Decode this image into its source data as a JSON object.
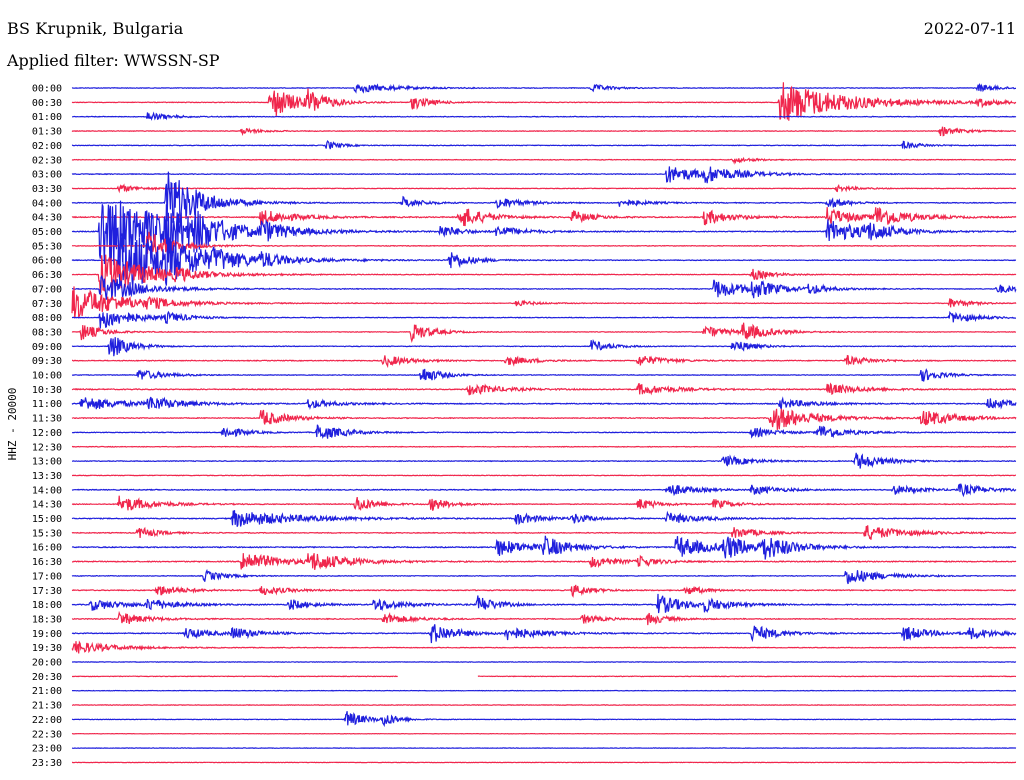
{
  "header": {
    "station": "BS Krupnik, Bulgaria",
    "filter": "Applied filter: WWSSN-SP",
    "date": "2022-07-11"
  },
  "chart_data": {
    "type": "line",
    "title": "BS Krupnik, Bulgaria",
    "subtitle": "Applied filter: WWSSN-SP",
    "ylabel": "HHZ - 20000",
    "xlabel": "",
    "colors": [
      "#1f1fdd",
      "#f0264c"
    ],
    "grid": false,
    "legend": "none",
    "rows": [
      {
        "label": "00:00",
        "color": "#1f1fdd",
        "level": 0.3,
        "events": [
          [
            0.3,
            0.5,
            6
          ],
          [
            0.55,
            0.4,
            3
          ],
          [
            0.96,
            0.4,
            3
          ]
        ]
      },
      {
        "label": "00:30",
        "color": "#f0264c",
        "level": 0.3,
        "events": [
          [
            0.21,
            1.8,
            4
          ],
          [
            0.25,
            1.1,
            3
          ],
          [
            0.36,
            0.7,
            3
          ],
          [
            0.75,
            2.2,
            10
          ],
          [
            0.96,
            0.4,
            3
          ]
        ]
      },
      {
        "label": "01:00",
        "color": "#1f1fdd",
        "level": 0.3,
        "events": [
          [
            0.08,
            0.5,
            3
          ]
        ]
      },
      {
        "label": "01:30",
        "color": "#f0264c",
        "level": 0.3,
        "events": [
          [
            0.18,
            0.3,
            3
          ],
          [
            0.92,
            0.5,
            3
          ]
        ]
      },
      {
        "label": "02:00",
        "color": "#1f1fdd",
        "level": 0.3,
        "events": [
          [
            0.27,
            0.5,
            2
          ],
          [
            0.88,
            0.4,
            3
          ]
        ]
      },
      {
        "label": "02:30",
        "color": "#f0264c",
        "level": 0.3,
        "events": [
          [
            0.7,
            0.3,
            3
          ]
        ]
      },
      {
        "label": "03:00",
        "color": "#1f1fdd",
        "level": 0.35,
        "events": [
          [
            0.63,
            0.9,
            6
          ],
          [
            0.67,
            0.7,
            5
          ]
        ]
      },
      {
        "label": "03:30",
        "color": "#f0264c",
        "level": 0.3,
        "events": [
          [
            0.05,
            0.4,
            3
          ],
          [
            0.81,
            0.3,
            3
          ]
        ]
      },
      {
        "label": "04:00",
        "color": "#1f1fdd",
        "level": 0.35,
        "events": [
          [
            0.1,
            3.5,
            5
          ],
          [
            0.35,
            0.6,
            3
          ],
          [
            0.45,
            0.6,
            4
          ],
          [
            0.58,
            0.4,
            4
          ],
          [
            0.8,
            0.6,
            3
          ]
        ]
      },
      {
        "label": "04:30",
        "color": "#f0264c",
        "level": 0.45,
        "events": [
          [
            0.2,
            0.8,
            5
          ],
          [
            0.41,
            1.2,
            4
          ],
          [
            0.53,
            0.7,
            3
          ],
          [
            0.67,
            0.8,
            4
          ],
          [
            0.8,
            1.0,
            4
          ],
          [
            0.85,
            1.1,
            5
          ]
        ]
      },
      {
        "label": "05:00",
        "color": "#1f1fdd",
        "level": 0.45,
        "events": [
          [
            0.03,
            4.5,
            10
          ],
          [
            0.1,
            1.4,
            4
          ],
          [
            0.13,
            1.1,
            4
          ],
          [
            0.2,
            0.9,
            4
          ],
          [
            0.39,
            0.7,
            3
          ],
          [
            0.45,
            0.6,
            4
          ],
          [
            0.8,
            1.2,
            6
          ],
          [
            0.84,
            0.8,
            4
          ]
        ]
      },
      {
        "label": "05:30",
        "color": "#f0264c",
        "level": 0.3,
        "events": [
          [
            0.08,
            1.5,
            4
          ]
        ]
      },
      {
        "label": "06:00",
        "color": "#1f1fdd",
        "level": 0.35,
        "events": [
          [
            0.05,
            3.5,
            10
          ],
          [
            0.1,
            1.0,
            4
          ],
          [
            0.15,
            0.6,
            3
          ],
          [
            0.2,
            0.6,
            3
          ],
          [
            0.4,
            1.0,
            3
          ]
        ]
      },
      {
        "label": "06:30",
        "color": "#f0264c",
        "level": 0.3,
        "events": [
          [
            0.03,
            2.2,
            8
          ],
          [
            0.11,
            0.4,
            3
          ],
          [
            0.72,
            0.6,
            3
          ]
        ]
      },
      {
        "label": "07:00",
        "color": "#1f1fdd",
        "level": 0.35,
        "events": [
          [
            0.03,
            1.5,
            6
          ],
          [
            0.68,
            1.0,
            5
          ],
          [
            0.72,
            0.8,
            4
          ],
          [
            0.78,
            0.5,
            3
          ],
          [
            0.98,
            0.5,
            3
          ]
        ]
      },
      {
        "label": "07:30",
        "color": "#f0264c",
        "level": 0.3,
        "events": [
          [
            0.0,
            1.8,
            8
          ],
          [
            0.08,
            0.4,
            3
          ],
          [
            0.47,
            0.3,
            3
          ],
          [
            0.93,
            0.5,
            3
          ]
        ]
      },
      {
        "label": "08:00",
        "color": "#1f1fdd",
        "level": 0.3,
        "events": [
          [
            0.03,
            1.2,
            5
          ],
          [
            0.1,
            0.5,
            3
          ],
          [
            0.93,
            0.6,
            4
          ]
        ]
      },
      {
        "label": "08:30",
        "color": "#f0264c",
        "level": 0.3,
        "events": [
          [
            0.01,
            0.9,
            3
          ],
          [
            0.36,
            1.0,
            3
          ],
          [
            0.67,
            0.6,
            4
          ],
          [
            0.71,
            0.9,
            4
          ]
        ]
      },
      {
        "label": "09:00",
        "color": "#1f1fdd",
        "level": 0.3,
        "events": [
          [
            0.04,
            1.3,
            3
          ],
          [
            0.55,
            0.6,
            3
          ],
          [
            0.7,
            0.7,
            3
          ]
        ]
      },
      {
        "label": "09:30",
        "color": "#f0264c",
        "level": 0.35,
        "events": [
          [
            0.33,
            0.6,
            4
          ],
          [
            0.46,
            0.5,
            4
          ],
          [
            0.6,
            0.6,
            4
          ],
          [
            0.82,
            0.5,
            4
          ]
        ]
      },
      {
        "label": "10:00",
        "color": "#1f1fdd",
        "level": 0.3,
        "events": [
          [
            0.07,
            0.6,
            4
          ],
          [
            0.37,
            0.9,
            3
          ],
          [
            0.9,
            0.7,
            3
          ]
        ]
      },
      {
        "label": "10:30",
        "color": "#f0264c",
        "level": 0.45,
        "events": [
          [
            0.42,
            0.6,
            5
          ],
          [
            0.6,
            0.6,
            5
          ],
          [
            0.8,
            0.6,
            5
          ]
        ]
      },
      {
        "label": "11:00",
        "color": "#1f1fdd",
        "level": 0.45,
        "events": [
          [
            0.01,
            0.8,
            6
          ],
          [
            0.08,
            0.7,
            5
          ],
          [
            0.25,
            0.5,
            4
          ],
          [
            0.75,
            0.5,
            5
          ],
          [
            0.97,
            0.6,
            4
          ]
        ]
      },
      {
        "label": "11:30",
        "color": "#f0264c",
        "level": 0.4,
        "events": [
          [
            0.2,
            0.9,
            4
          ],
          [
            0.74,
            1.4,
            6
          ],
          [
            0.9,
            0.9,
            5
          ]
        ]
      },
      {
        "label": "12:00",
        "color": "#1f1fdd",
        "level": 0.35,
        "events": [
          [
            0.16,
            0.7,
            3
          ],
          [
            0.26,
            0.9,
            4
          ],
          [
            0.72,
            0.5,
            4
          ],
          [
            0.79,
            0.8,
            4
          ]
        ]
      },
      {
        "label": "12:30",
        "color": "#f0264c",
        "level": 0.3,
        "events": []
      },
      {
        "label": "13:00",
        "color": "#1f1fdd",
        "level": 0.35,
        "events": [
          [
            0.69,
            0.6,
            4
          ],
          [
            0.83,
            0.9,
            4
          ]
        ]
      },
      {
        "label": "13:30",
        "color": "#f0264c",
        "level": 0.3,
        "events": []
      },
      {
        "label": "14:00",
        "color": "#1f1fdd",
        "level": 0.4,
        "events": [
          [
            0.63,
            0.7,
            4
          ],
          [
            0.72,
            0.5,
            4
          ],
          [
            0.87,
            0.5,
            4
          ],
          [
            0.94,
            0.6,
            4
          ]
        ]
      },
      {
        "label": "14:30",
        "color": "#f0264c",
        "level": 0.35,
        "events": [
          [
            0.05,
            0.9,
            5
          ],
          [
            0.3,
            0.9,
            3
          ],
          [
            0.38,
            0.7,
            3
          ],
          [
            0.6,
            0.6,
            3
          ],
          [
            0.68,
            0.5,
            3
          ]
        ]
      },
      {
        "label": "15:00",
        "color": "#1f1fdd",
        "level": 0.4,
        "events": [
          [
            0.17,
            0.9,
            10
          ],
          [
            0.47,
            0.6,
            4
          ],
          [
            0.53,
            0.5,
            3
          ],
          [
            0.63,
            0.6,
            5
          ]
        ]
      },
      {
        "label": "15:30",
        "color": "#f0264c",
        "level": 0.35,
        "events": [
          [
            0.07,
            0.6,
            3
          ],
          [
            0.7,
            0.6,
            4
          ],
          [
            0.84,
            0.8,
            6
          ]
        ]
      },
      {
        "label": "16:00",
        "color": "#1f1fdd",
        "level": 0.45,
        "events": [
          [
            0.45,
            0.9,
            5
          ],
          [
            0.5,
            1.0,
            4
          ],
          [
            0.64,
            1.2,
            5
          ],
          [
            0.69,
            1.1,
            5
          ],
          [
            0.73,
            1.1,
            5
          ]
        ]
      },
      {
        "label": "16:30",
        "color": "#f0264c",
        "level": 0.45,
        "events": [
          [
            0.18,
            1.2,
            5
          ],
          [
            0.25,
            1.0,
            6
          ],
          [
            0.55,
            0.6,
            4
          ],
          [
            0.6,
            0.5,
            3
          ]
        ]
      },
      {
        "label": "17:00",
        "color": "#1f1fdd",
        "level": 0.3,
        "events": [
          [
            0.14,
            0.6,
            3
          ],
          [
            0.82,
            0.9,
            5
          ]
        ]
      },
      {
        "label": "17:30",
        "color": "#f0264c",
        "level": 0.4,
        "events": [
          [
            0.09,
            0.6,
            4
          ],
          [
            0.2,
            0.5,
            4
          ],
          [
            0.53,
            0.6,
            3
          ],
          [
            0.65,
            0.5,
            3
          ]
        ]
      },
      {
        "label": "18:00",
        "color": "#1f1fdd",
        "level": 0.45,
        "events": [
          [
            0.02,
            0.6,
            5
          ],
          [
            0.08,
            0.6,
            4
          ],
          [
            0.23,
            0.6,
            3
          ],
          [
            0.32,
            0.7,
            4
          ],
          [
            0.43,
            0.9,
            3
          ],
          [
            0.62,
            1.1,
            4
          ],
          [
            0.67,
            0.6,
            4
          ]
        ]
      },
      {
        "label": "18:30",
        "color": "#f0264c",
        "level": 0.4,
        "events": [
          [
            0.05,
            0.7,
            4
          ],
          [
            0.33,
            0.6,
            4
          ],
          [
            0.54,
            0.5,
            3
          ],
          [
            0.61,
            0.6,
            3
          ]
        ]
      },
      {
        "label": "19:00",
        "color": "#1f1fdd",
        "level": 0.4,
        "events": [
          [
            0.12,
            0.6,
            4
          ],
          [
            0.17,
            0.6,
            4
          ],
          [
            0.38,
            1.1,
            4
          ],
          [
            0.46,
            0.7,
            5
          ],
          [
            0.72,
            0.9,
            4
          ],
          [
            0.88,
            0.8,
            4
          ],
          [
            0.95,
            0.6,
            4
          ]
        ]
      },
      {
        "label": "19:30",
        "color": "#f0264c",
        "level": 0.3,
        "events": [
          [
            0.0,
            0.7,
            6
          ]
        ]
      },
      {
        "label": "20:00",
        "color": "#1f1fdd",
        "level": 0.25,
        "events": []
      },
      {
        "label": "20:30",
        "color": "#f0264c",
        "level": 0.25,
        "events": [],
        "gap": [
          0.345,
          0.43
        ]
      },
      {
        "label": "21:00",
        "color": "#1f1fdd",
        "level": 0.25,
        "events": []
      },
      {
        "label": "21:30",
        "color": "#f0264c",
        "level": 0.25,
        "events": []
      },
      {
        "label": "22:00",
        "color": "#1f1fdd",
        "level": 0.25,
        "events": [
          [
            0.29,
            0.9,
            3
          ],
          [
            0.33,
            0.7,
            2
          ]
        ]
      },
      {
        "label": "22:30",
        "color": "#f0264c",
        "level": 0.2,
        "events": []
      },
      {
        "label": "23:00",
        "color": "#1f1fdd",
        "level": 0.2,
        "events": []
      },
      {
        "label": "23:30",
        "color": "#f0264c",
        "level": 0.2,
        "events": []
      }
    ]
  }
}
